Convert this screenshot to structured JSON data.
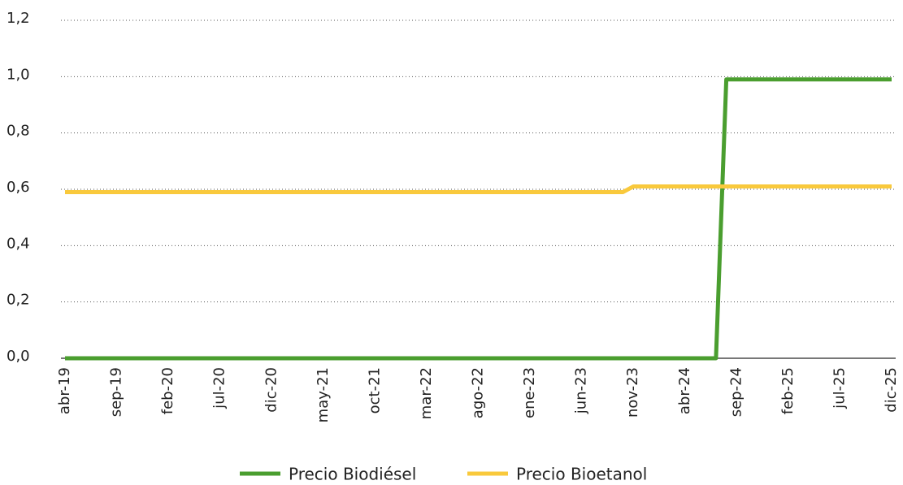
{
  "chart_data": {
    "type": "line",
    "categories": [
      "abr-19",
      null,
      null,
      null,
      null,
      "sep-19",
      null,
      null,
      null,
      null,
      "feb-20",
      null,
      null,
      null,
      null,
      "jul-20",
      null,
      null,
      null,
      null,
      "dic-20",
      null,
      null,
      null,
      null,
      "may-21",
      null,
      null,
      null,
      null,
      "oct-21",
      null,
      null,
      null,
      null,
      "mar-22",
      null,
      null,
      null,
      null,
      "ago-22",
      null,
      null,
      null,
      null,
      "ene-23",
      null,
      null,
      null,
      null,
      "jun-23",
      null,
      null,
      null,
      null,
      "nov-23",
      null,
      null,
      null,
      null,
      "abr-24",
      null,
      null,
      null,
      null,
      "sep-24",
      null,
      null,
      null,
      null,
      "feb-25",
      null,
      null,
      null,
      null,
      "jul-25",
      null,
      null,
      null,
      null,
      "dic-25"
    ],
    "series": [
      {
        "name": "Precio Biodiésel",
        "color": "#4a9e2f",
        "values": [
          0,
          0,
          0,
          0,
          0,
          0,
          0,
          0,
          0,
          0,
          0,
          0,
          0,
          0,
          0,
          0,
          0,
          0,
          0,
          0,
          0,
          0,
          0,
          0,
          0,
          0,
          0,
          0,
          0,
          0,
          0,
          0,
          0,
          0,
          0,
          0,
          0,
          0,
          0,
          0,
          0,
          0,
          0,
          0,
          0,
          0,
          0,
          0,
          0,
          0,
          0,
          0,
          0,
          0,
          0,
          0,
          0,
          0,
          0,
          0,
          0,
          0,
          0,
          0,
          0.99,
          0.99,
          0.99,
          0.99,
          0.99,
          0.99,
          0.99,
          0.99,
          0.99,
          0.99,
          0.99,
          0.99,
          0.99,
          0.99,
          0.99,
          0.99,
          0.99
        ]
      },
      {
        "name": "Precio Bioetanol",
        "color": "#f9c93c",
        "values": [
          0.59,
          0.59,
          0.59,
          0.59,
          0.59,
          0.59,
          0.59,
          0.59,
          0.59,
          0.59,
          0.59,
          0.59,
          0.59,
          0.59,
          0.59,
          0.59,
          0.59,
          0.59,
          0.59,
          0.59,
          0.59,
          0.59,
          0.59,
          0.59,
          0.59,
          0.59,
          0.59,
          0.59,
          0.59,
          0.59,
          0.59,
          0.59,
          0.59,
          0.59,
          0.59,
          0.59,
          0.59,
          0.59,
          0.59,
          0.59,
          0.59,
          0.59,
          0.59,
          0.59,
          0.59,
          0.59,
          0.59,
          0.59,
          0.59,
          0.59,
          0.59,
          0.59,
          0.59,
          0.59,
          0.59,
          0.61,
          0.61,
          0.61,
          0.61,
          0.61,
          0.61,
          0.61,
          0.61,
          0.61,
          0.61,
          0.61,
          0.61,
          0.61,
          0.61,
          0.61,
          0.61,
          0.61,
          0.61,
          0.61,
          0.61,
          0.61,
          0.61,
          0.61,
          0.61,
          0.61,
          0.61
        ]
      }
    ],
    "ylim": [
      0,
      1.2
    ],
    "yticks": [
      {
        "value": 0,
        "label": "0,0"
      },
      {
        "value": 0.2,
        "label": "0,2"
      },
      {
        "value": 0.4,
        "label": "0,4"
      },
      {
        "value": 0.6,
        "label": "0,6"
      },
      {
        "value": 0.8,
        "label": "0,8"
      },
      {
        "value": 1.0,
        "label": "1,0"
      },
      {
        "value": 1.2,
        "label": "1,2"
      }
    ],
    "grid": true,
    "legend": "bottom"
  }
}
